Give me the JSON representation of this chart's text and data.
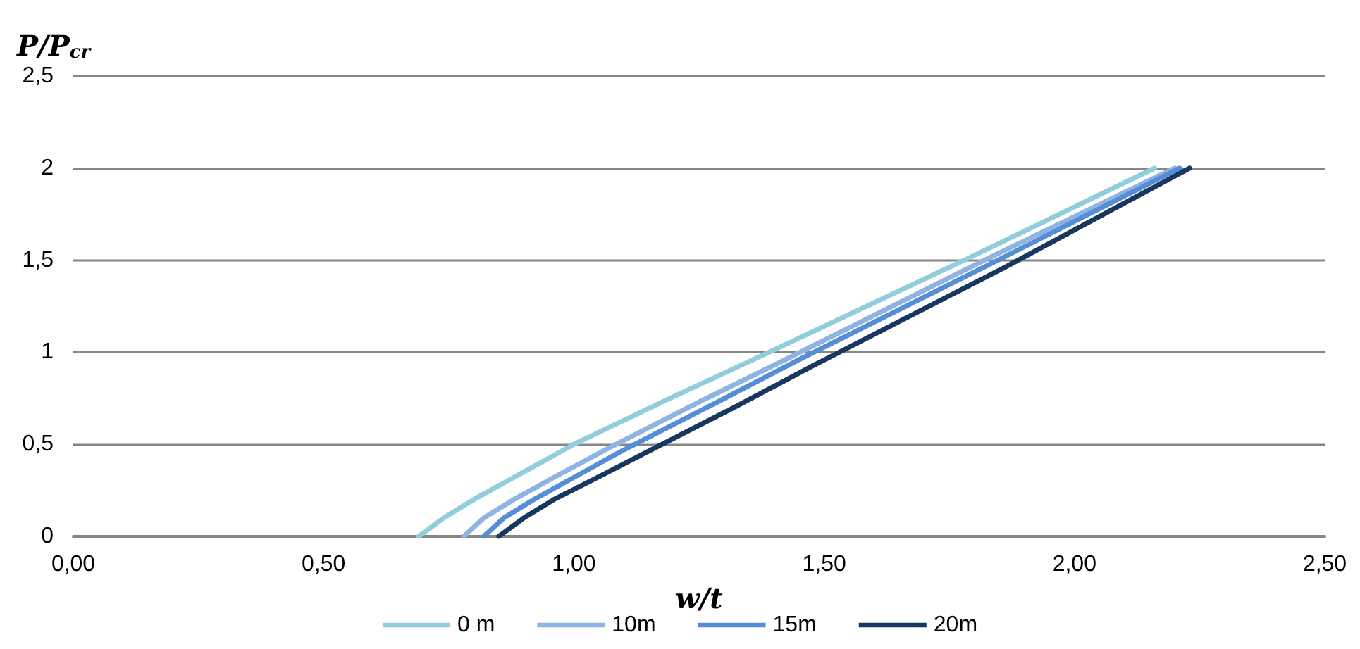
{
  "chart_data": {
    "type": "line",
    "xlabel": "w/t",
    "ylabel": "P/P$_{cr}$",
    "xlim": [
      0,
      2.5
    ],
    "xticks": [
      {
        "value": 0,
        "label": "0,00"
      },
      {
        "value": 0.5,
        "label": "0,50"
      },
      {
        "value": 1,
        "label": "1,00"
      },
      {
        "value": 1.5,
        "label": "1,50"
      },
      {
        "value": 2,
        "label": "2,00"
      },
      {
        "value": 2.5,
        "label": "2,50"
      }
    ],
    "ylim": [
      0,
      2.5
    ],
    "yticks": [
      0,
      {
        "value": 0.5,
        "label": "0,5"
      },
      1,
      {
        "value": 1.5,
        "label": "1,5"
      },
      2,
      {
        "value": 2.5,
        "label": "2,5"
      }
    ],
    "grid": "y",
    "legend": "bottom",
    "marker": "none",
    "line_style": "solid",
    "series": [
      {
        "name": "0 m",
        "color": "#92cddc",
        "x": [
          0.69,
          0.74,
          0.8,
          0.88,
          1.0,
          1.2,
          1.39,
          1.78,
          2.16
        ],
        "values": [
          0,
          0.1,
          0.2,
          0.32,
          0.5,
          0.76,
          1,
          1.5,
          2
        ]
      },
      {
        "name": "10m",
        "color": "#8eb4e3",
        "x": [
          0.78,
          0.82,
          0.88,
          0.96,
          1.07,
          1.25,
          1.43,
          1.82,
          2.2
        ],
        "values": [
          0,
          0.1,
          0.2,
          0.32,
          0.48,
          0.73,
          0.97,
          1.5,
          2
        ]
      },
      {
        "name": "15m",
        "color": "#558ed5",
        "x": [
          0.82,
          0.86,
          0.92,
          1.0,
          1.1,
          1.28,
          1.45,
          1.84,
          2.21
        ],
        "values": [
          0,
          0.1,
          0.2,
          0.32,
          0.47,
          0.72,
          0.96,
          1.49,
          2
        ]
      },
      {
        "name": "20m",
        "color": "#17375e",
        "x": [
          0.85,
          0.9,
          0.96,
          1.04,
          1.14,
          1.32,
          1.48,
          1.86,
          2.23
        ],
        "values": [
          0,
          0.1,
          0.2,
          0.31,
          0.45,
          0.7,
          0.93,
          1.46,
          2
        ]
      }
    ]
  }
}
